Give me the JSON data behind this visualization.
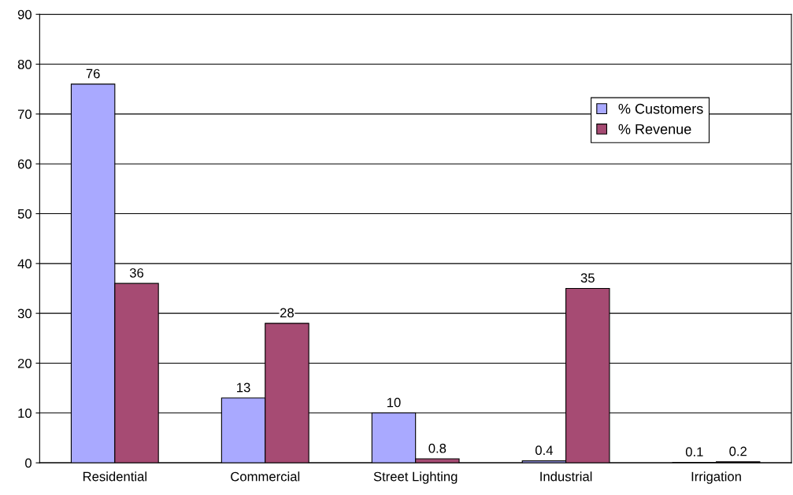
{
  "chart_data": {
    "type": "bar",
    "categories": [
      "Residential",
      "Commercial",
      "Street Lighting",
      "Industrial",
      "Irrigation"
    ],
    "series": [
      {
        "name": "% Customers",
        "color": "#a9a9ff",
        "values": [
          76,
          13,
          10,
          0.4,
          0.1
        ]
      },
      {
        "name": "% Revenue",
        "color": "#a64b73",
        "values": [
          36,
          28,
          0.8,
          35,
          0.2
        ]
      }
    ],
    "ylim": [
      0,
      90
    ],
    "yticks": [
      0,
      10,
      20,
      30,
      40,
      50,
      60,
      70,
      80,
      90
    ],
    "grid": "y",
    "legend": "top right",
    "data_labels": true
  }
}
